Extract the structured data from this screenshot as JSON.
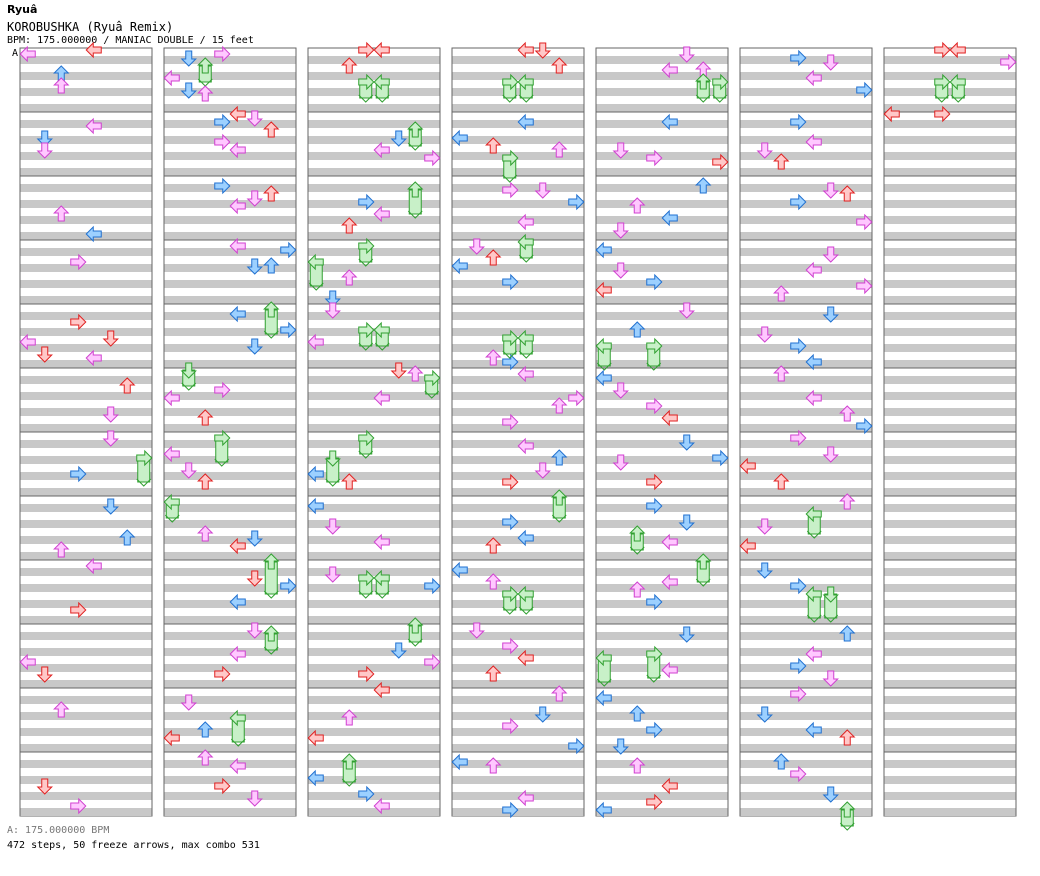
{
  "header": {
    "author": "Ryuâ",
    "title": "KOROBUSHKA (Ryuâ   Remix)",
    "meta": "BPM: 175.000000 / MANIAC DOUBLE / 15 feet",
    "bpm_marker": "A"
  },
  "footer": {
    "bpm_line": "A: 175.000000 BPM",
    "stats": "472 steps, 50 freeze arrows, max combo 531"
  },
  "colors": {
    "red_fill": "#ffc8c8",
    "red_stroke": "#e02020",
    "blue_fill": "#9cd0ff",
    "blue_stroke": "#2070d0",
    "pink_fill": "#ffc8ff",
    "pink_stroke": "#d040d0",
    "green_fill": "#c8f0c8",
    "green_stroke": "#30a030",
    "stripe": "#c8c8c8",
    "border": "#666666"
  },
  "chart_data": {
    "type": "step-chart",
    "columns": 7,
    "measures_per_column": 12,
    "lanes_per_measure": 8,
    "rows_per_measure": 16,
    "notes": [
      [
        0,
        1,
        1,
        6
      ],
      [
        0,
        0,
        2,
        6
      ],
      [
        0,
        1,
        1,
        9
      ],
      [
        0,
        0,
        2,
        9
      ],
      [
        0,
        0,
        4,
        0
      ],
      [
        0,
        0,
        0,
        1
      ],
      [
        0,
        1,
        4,
        3
      ],
      [
        0,
        2,
        2,
        9
      ],
      [
        0,
        2,
        4,
        14
      ],
      [
        0,
        3,
        3,
        5
      ],
      [
        0,
        4,
        0,
        9
      ],
      [
        0,
        4,
        1,
        12
      ],
      [
        0,
        4,
        3,
        4
      ],
      [
        0,
        4,
        4,
        13
      ],
      [
        0,
        4,
        5,
        8
      ],
      [
        0,
        5,
        6,
        4
      ],
      [
        0,
        5,
        5,
        11
      ],
      [
        0,
        6,
        7,
        6,
        6
      ],
      [
        0,
        6,
        5,
        1
      ],
      [
        0,
        6,
        3,
        10
      ],
      [
        0,
        7,
        6,
        10
      ],
      [
        0,
        7,
        2,
        13
      ],
      [
        0,
        7,
        5,
        2
      ],
      [
        0,
        8,
        3,
        12
      ],
      [
        0,
        8,
        4,
        1
      ],
      [
        0,
        9,
        0,
        9
      ],
      [
        0,
        9,
        1,
        12
      ],
      [
        0,
        10,
        2,
        5
      ],
      [
        0,
        11,
        1,
        8
      ],
      [
        0,
        11,
        3,
        13
      ],
      [
        1,
        0,
        1,
        2
      ],
      [
        1,
        0,
        2,
        4,
        4
      ],
      [
        1,
        0,
        3,
        1
      ],
      [
        1,
        0,
        0,
        7
      ],
      [
        1,
        0,
        1,
        10
      ],
      [
        1,
        0,
        2,
        11
      ],
      [
        1,
        1,
        3,
        2
      ],
      [
        1,
        1,
        4,
        0
      ],
      [
        1,
        1,
        3,
        7
      ],
      [
        1,
        1,
        5,
        1
      ],
      [
        1,
        1,
        4,
        9
      ],
      [
        1,
        1,
        6,
        4
      ],
      [
        1,
        2,
        3,
        2
      ],
      [
        1,
        2,
        5,
        5
      ],
      [
        1,
        2,
        4,
        7
      ],
      [
        1,
        2,
        6,
        4
      ],
      [
        1,
        3,
        4,
        1
      ],
      [
        1,
        3,
        5,
        6
      ],
      [
        1,
        3,
        7,
        2
      ],
      [
        1,
        3,
        6,
        6
      ],
      [
        1,
        4,
        4,
        2
      ],
      [
        1,
        4,
        6,
        1,
        6
      ],
      [
        1,
        4,
        7,
        6
      ],
      [
        1,
        4,
        5,
        10
      ],
      [
        1,
        5,
        1,
        0,
        4
      ],
      [
        1,
        5,
        0,
        7
      ],
      [
        1,
        5,
        3,
        5
      ],
      [
        1,
        5,
        2,
        12
      ],
      [
        1,
        6,
        3,
        1,
        6
      ],
      [
        1,
        6,
        0,
        5
      ],
      [
        1,
        6,
        1,
        9
      ],
      [
        1,
        6,
        2,
        12
      ],
      [
        1,
        7,
        0,
        1,
        4
      ],
      [
        1,
        7,
        2,
        9
      ],
      [
        1,
        7,
        4,
        12
      ],
      [
        1,
        7,
        5,
        10
      ],
      [
        1,
        8,
        6,
        0,
        8
      ],
      [
        1,
        8,
        5,
        4
      ],
      [
        1,
        8,
        7,
        6
      ],
      [
        1,
        8,
        4,
        10
      ],
      [
        1,
        9,
        5,
        1
      ],
      [
        1,
        9,
        6,
        2,
        4
      ],
      [
        1,
        9,
        4,
        7
      ],
      [
        1,
        9,
        3,
        12
      ],
      [
        1,
        10,
        1,
        3
      ],
      [
        1,
        10,
        4,
        7,
        6
      ],
      [
        1,
        10,
        2,
        10
      ],
      [
        1,
        10,
        0,
        12
      ],
      [
        1,
        11,
        2,
        1
      ],
      [
        1,
        11,
        4,
        3
      ],
      [
        1,
        11,
        3,
        8
      ],
      [
        1,
        11,
        5,
        11
      ],
      [
        2,
        0,
        3,
        0
      ],
      [
        2,
        0,
        4,
        0
      ],
      [
        2,
        0,
        2,
        4
      ],
      [
        2,
        0,
        3,
        8,
        4
      ],
      [
        2,
        0,
        4,
        8,
        4
      ],
      [
        2,
        1,
        6,
        4,
        4
      ],
      [
        2,
        1,
        5,
        6
      ],
      [
        2,
        1,
        4,
        9
      ],
      [
        2,
        1,
        7,
        11
      ],
      [
        2,
        2,
        6,
        3,
        6
      ],
      [
        2,
        2,
        3,
        6
      ],
      [
        2,
        2,
        4,
        9
      ],
      [
        2,
        2,
        2,
        12
      ],
      [
        2,
        3,
        3,
        1,
        4
      ],
      [
        2,
        3,
        0,
        5,
        6
      ],
      [
        2,
        3,
        2,
        9
      ],
      [
        2,
        3,
        1,
        14
      ],
      [
        2,
        4,
        1,
        1
      ],
      [
        2,
        4,
        3,
        6,
        4
      ],
      [
        2,
        4,
        4,
        6,
        4
      ],
      [
        2,
        4,
        0,
        9
      ],
      [
        2,
        5,
        5,
        0
      ],
      [
        2,
        5,
        6,
        1
      ],
      [
        2,
        5,
        7,
        2,
        4
      ],
      [
        2,
        5,
        4,
        7
      ],
      [
        2,
        6,
        3,
        1,
        4
      ],
      [
        2,
        6,
        1,
        6,
        6
      ],
      [
        2,
        6,
        0,
        10
      ],
      [
        2,
        6,
        2,
        12
      ],
      [
        2,
        7,
        0,
        2
      ],
      [
        2,
        7,
        1,
        7
      ],
      [
        2,
        7,
        4,
        11
      ],
      [
        2,
        8,
        3,
        4,
        4
      ],
      [
        2,
        8,
        4,
        4,
        4
      ],
      [
        2,
        8,
        7,
        6
      ],
      [
        2,
        8,
        1,
        3
      ],
      [
        2,
        9,
        6,
        0,
        4
      ],
      [
        2,
        9,
        5,
        6
      ],
      [
        2,
        9,
        7,
        9
      ],
      [
        2,
        9,
        3,
        12
      ],
      [
        2,
        10,
        4,
        0
      ],
      [
        2,
        10,
        2,
        7
      ],
      [
        2,
        10,
        0,
        12
      ],
      [
        2,
        11,
        2,
        2,
        5
      ],
      [
        2,
        11,
        0,
        6
      ],
      [
        2,
        11,
        3,
        10
      ],
      [
        2,
        11,
        4,
        13
      ],
      [
        3,
        0,
        4,
        0
      ],
      [
        3,
        0,
        5,
        0
      ],
      [
        3,
        0,
        6,
        4
      ],
      [
        3,
        0,
        3,
        8,
        4
      ],
      [
        3,
        0,
        4,
        8,
        4
      ],
      [
        3,
        1,
        0,
        6
      ],
      [
        3,
        1,
        2,
        8
      ],
      [
        3,
        1,
        4,
        2
      ],
      [
        3,
        1,
        3,
        11,
        5
      ],
      [
        3,
        1,
        6,
        9
      ],
      [
        3,
        2,
        5,
        3
      ],
      [
        3,
        2,
        7,
        6
      ],
      [
        3,
        2,
        4,
        11
      ],
      [
        3,
        2,
        3,
        3
      ],
      [
        3,
        3,
        1,
        1
      ],
      [
        3,
        3,
        2,
        4
      ],
      [
        3,
        3,
        0,
        6
      ],
      [
        3,
        3,
        4,
        0,
        4
      ],
      [
        3,
        3,
        3,
        10
      ],
      [
        3,
        4,
        2,
        13
      ],
      [
        3,
        4,
        3,
        14
      ],
      [
        3,
        4,
        4,
        8,
        4
      ],
      [
        3,
        4,
        3,
        8,
        4
      ],
      [
        3,
        5,
        4,
        1
      ],
      [
        3,
        5,
        7,
        7
      ],
      [
        3,
        5,
        3,
        13
      ],
      [
        3,
        5,
        6,
        9
      ],
      [
        3,
        6,
        5,
        9
      ],
      [
        3,
        6,
        4,
        3
      ],
      [
        3,
        6,
        6,
        6
      ],
      [
        3,
        6,
        3,
        12
      ],
      [
        3,
        7,
        6,
        0,
        5
      ],
      [
        3,
        7,
        3,
        6
      ],
      [
        3,
        7,
        4,
        10
      ],
      [
        3,
        7,
        2,
        12
      ],
      [
        3,
        8,
        0,
        2
      ],
      [
        3,
        8,
        2,
        5
      ],
      [
        3,
        8,
        3,
        8,
        4
      ],
      [
        3,
        8,
        4,
        8,
        4
      ],
      [
        3,
        9,
        1,
        1
      ],
      [
        3,
        9,
        3,
        5
      ],
      [
        3,
        9,
        4,
        8
      ],
      [
        3,
        9,
        2,
        12
      ],
      [
        3,
        10,
        6,
        1
      ],
      [
        3,
        10,
        5,
        6
      ],
      [
        3,
        10,
        3,
        9
      ],
      [
        3,
        10,
        7,
        14
      ],
      [
        3,
        11,
        0,
        2
      ],
      [
        3,
        11,
        2,
        3
      ],
      [
        3,
        11,
        4,
        11
      ],
      [
        3,
        11,
        3,
        14
      ],
      [
        4,
        0,
        5,
        1
      ],
      [
        4,
        0,
        4,
        5
      ],
      [
        4,
        0,
        6,
        5
      ],
      [
        4,
        0,
        7,
        8,
        4
      ],
      [
        4,
        0,
        6,
        8,
        4
      ],
      [
        4,
        1,
        4,
        2
      ],
      [
        4,
        1,
        1,
        9
      ],
      [
        4,
        1,
        3,
        11
      ],
      [
        4,
        1,
        7,
        12
      ],
      [
        4,
        2,
        6,
        2
      ],
      [
        4,
        2,
        2,
        7
      ],
      [
        4,
        2,
        4,
        10
      ],
      [
        4,
        2,
        1,
        13
      ],
      [
        4,
        3,
        0,
        2
      ],
      [
        4,
        3,
        1,
        7
      ],
      [
        4,
        3,
        3,
        10
      ],
      [
        4,
        3,
        0,
        12
      ],
      [
        4,
        4,
        5,
        1
      ],
      [
        4,
        4,
        2,
        6
      ],
      [
        4,
        4,
        0,
        10,
        5
      ],
      [
        4,
        4,
        3,
        10,
        5
      ],
      [
        4,
        5,
        0,
        2
      ],
      [
        4,
        5,
        1,
        5
      ],
      [
        4,
        5,
        3,
        9
      ],
      [
        4,
        5,
        4,
        12
      ],
      [
        4,
        6,
        5,
        2
      ],
      [
        4,
        6,
        1,
        7
      ],
      [
        4,
        6,
        3,
        12
      ],
      [
        4,
        6,
        7,
        6
      ],
      [
        4,
        7,
        3,
        2
      ],
      [
        4,
        7,
        5,
        6
      ],
      [
        4,
        7,
        2,
        9,
        4
      ],
      [
        4,
        7,
        4,
        11
      ],
      [
        4,
        8,
        6,
        0,
        5
      ],
      [
        4,
        8,
        4,
        5
      ],
      [
        4,
        8,
        2,
        7
      ],
      [
        4,
        8,
        3,
        10
      ],
      [
        4,
        9,
        0,
        8,
        6
      ],
      [
        4,
        9,
        3,
        7,
        6
      ],
      [
        4,
        9,
        5,
        2
      ],
      [
        4,
        9,
        4,
        11
      ],
      [
        4,
        10,
        0,
        2
      ],
      [
        4,
        10,
        2,
        6
      ],
      [
        4,
        10,
        3,
        10
      ],
      [
        4,
        10,
        1,
        14
      ],
      [
        4,
        11,
        2,
        3
      ],
      [
        4,
        11,
        4,
        8
      ],
      [
        4,
        11,
        3,
        12
      ],
      [
        4,
        11,
        0,
        14
      ],
      [
        5,
        0,
        3,
        2
      ],
      [
        5,
        0,
        5,
        3
      ],
      [
        5,
        0,
        4,
        7
      ],
      [
        5,
        0,
        7,
        10
      ],
      [
        5,
        1,
        3,
        2
      ],
      [
        5,
        1,
        1,
        9
      ],
      [
        5,
        1,
        4,
        7
      ],
      [
        5,
        1,
        2,
        12
      ],
      [
        5,
        2,
        5,
        3
      ],
      [
        5,
        2,
        3,
        6
      ],
      [
        5,
        2,
        7,
        11
      ],
      [
        5,
        2,
        6,
        4
      ],
      [
        5,
        3,
        5,
        3
      ],
      [
        5,
        3,
        4,
        7
      ],
      [
        5,
        3,
        7,
        11
      ],
      [
        5,
        3,
        2,
        13
      ],
      [
        5,
        4,
        5,
        2
      ],
      [
        5,
        4,
        1,
        7
      ],
      [
        5,
        4,
        3,
        10
      ],
      [
        5,
        4,
        4,
        14
      ],
      [
        5,
        5,
        2,
        1
      ],
      [
        5,
        5,
        4,
        7
      ],
      [
        5,
        5,
        6,
        11
      ],
      [
        5,
        5,
        7,
        14
      ],
      [
        5,
        6,
        3,
        1
      ],
      [
        5,
        6,
        5,
        5
      ],
      [
        5,
        6,
        0,
        8
      ],
      [
        5,
        6,
        2,
        12
      ],
      [
        5,
        7,
        6,
        1
      ],
      [
        5,
        7,
        4,
        4,
        5
      ],
      [
        5,
        7,
        1,
        7
      ],
      [
        5,
        7,
        0,
        12
      ],
      [
        5,
        8,
        1,
        2
      ],
      [
        5,
        8,
        3,
        6
      ],
      [
        5,
        8,
        4,
        8,
        6
      ],
      [
        5,
        8,
        5,
        8,
        6
      ],
      [
        5,
        9,
        6,
        2
      ],
      [
        5,
        9,
        4,
        7
      ],
      [
        5,
        9,
        3,
        10
      ],
      [
        5,
        9,
        5,
        13
      ],
      [
        5,
        10,
        3,
        1
      ],
      [
        5,
        10,
        1,
        6
      ],
      [
        5,
        10,
        4,
        10
      ],
      [
        5,
        10,
        6,
        12
      ],
      [
        5,
        11,
        2,
        2
      ],
      [
        5,
        11,
        3,
        5
      ],
      [
        5,
        11,
        5,
        10
      ],
      [
        5,
        11,
        6,
        14,
        4
      ],
      [
        6,
        0,
        3,
        0
      ],
      [
        6,
        0,
        4,
        0
      ],
      [
        6,
        0,
        7,
        3
      ],
      [
        6,
        0,
        3,
        8,
        4
      ],
      [
        6,
        0,
        4,
        8,
        4
      ],
      [
        6,
        1,
        0,
        0
      ],
      [
        6,
        1,
        3,
        0
      ]
    ]
  }
}
